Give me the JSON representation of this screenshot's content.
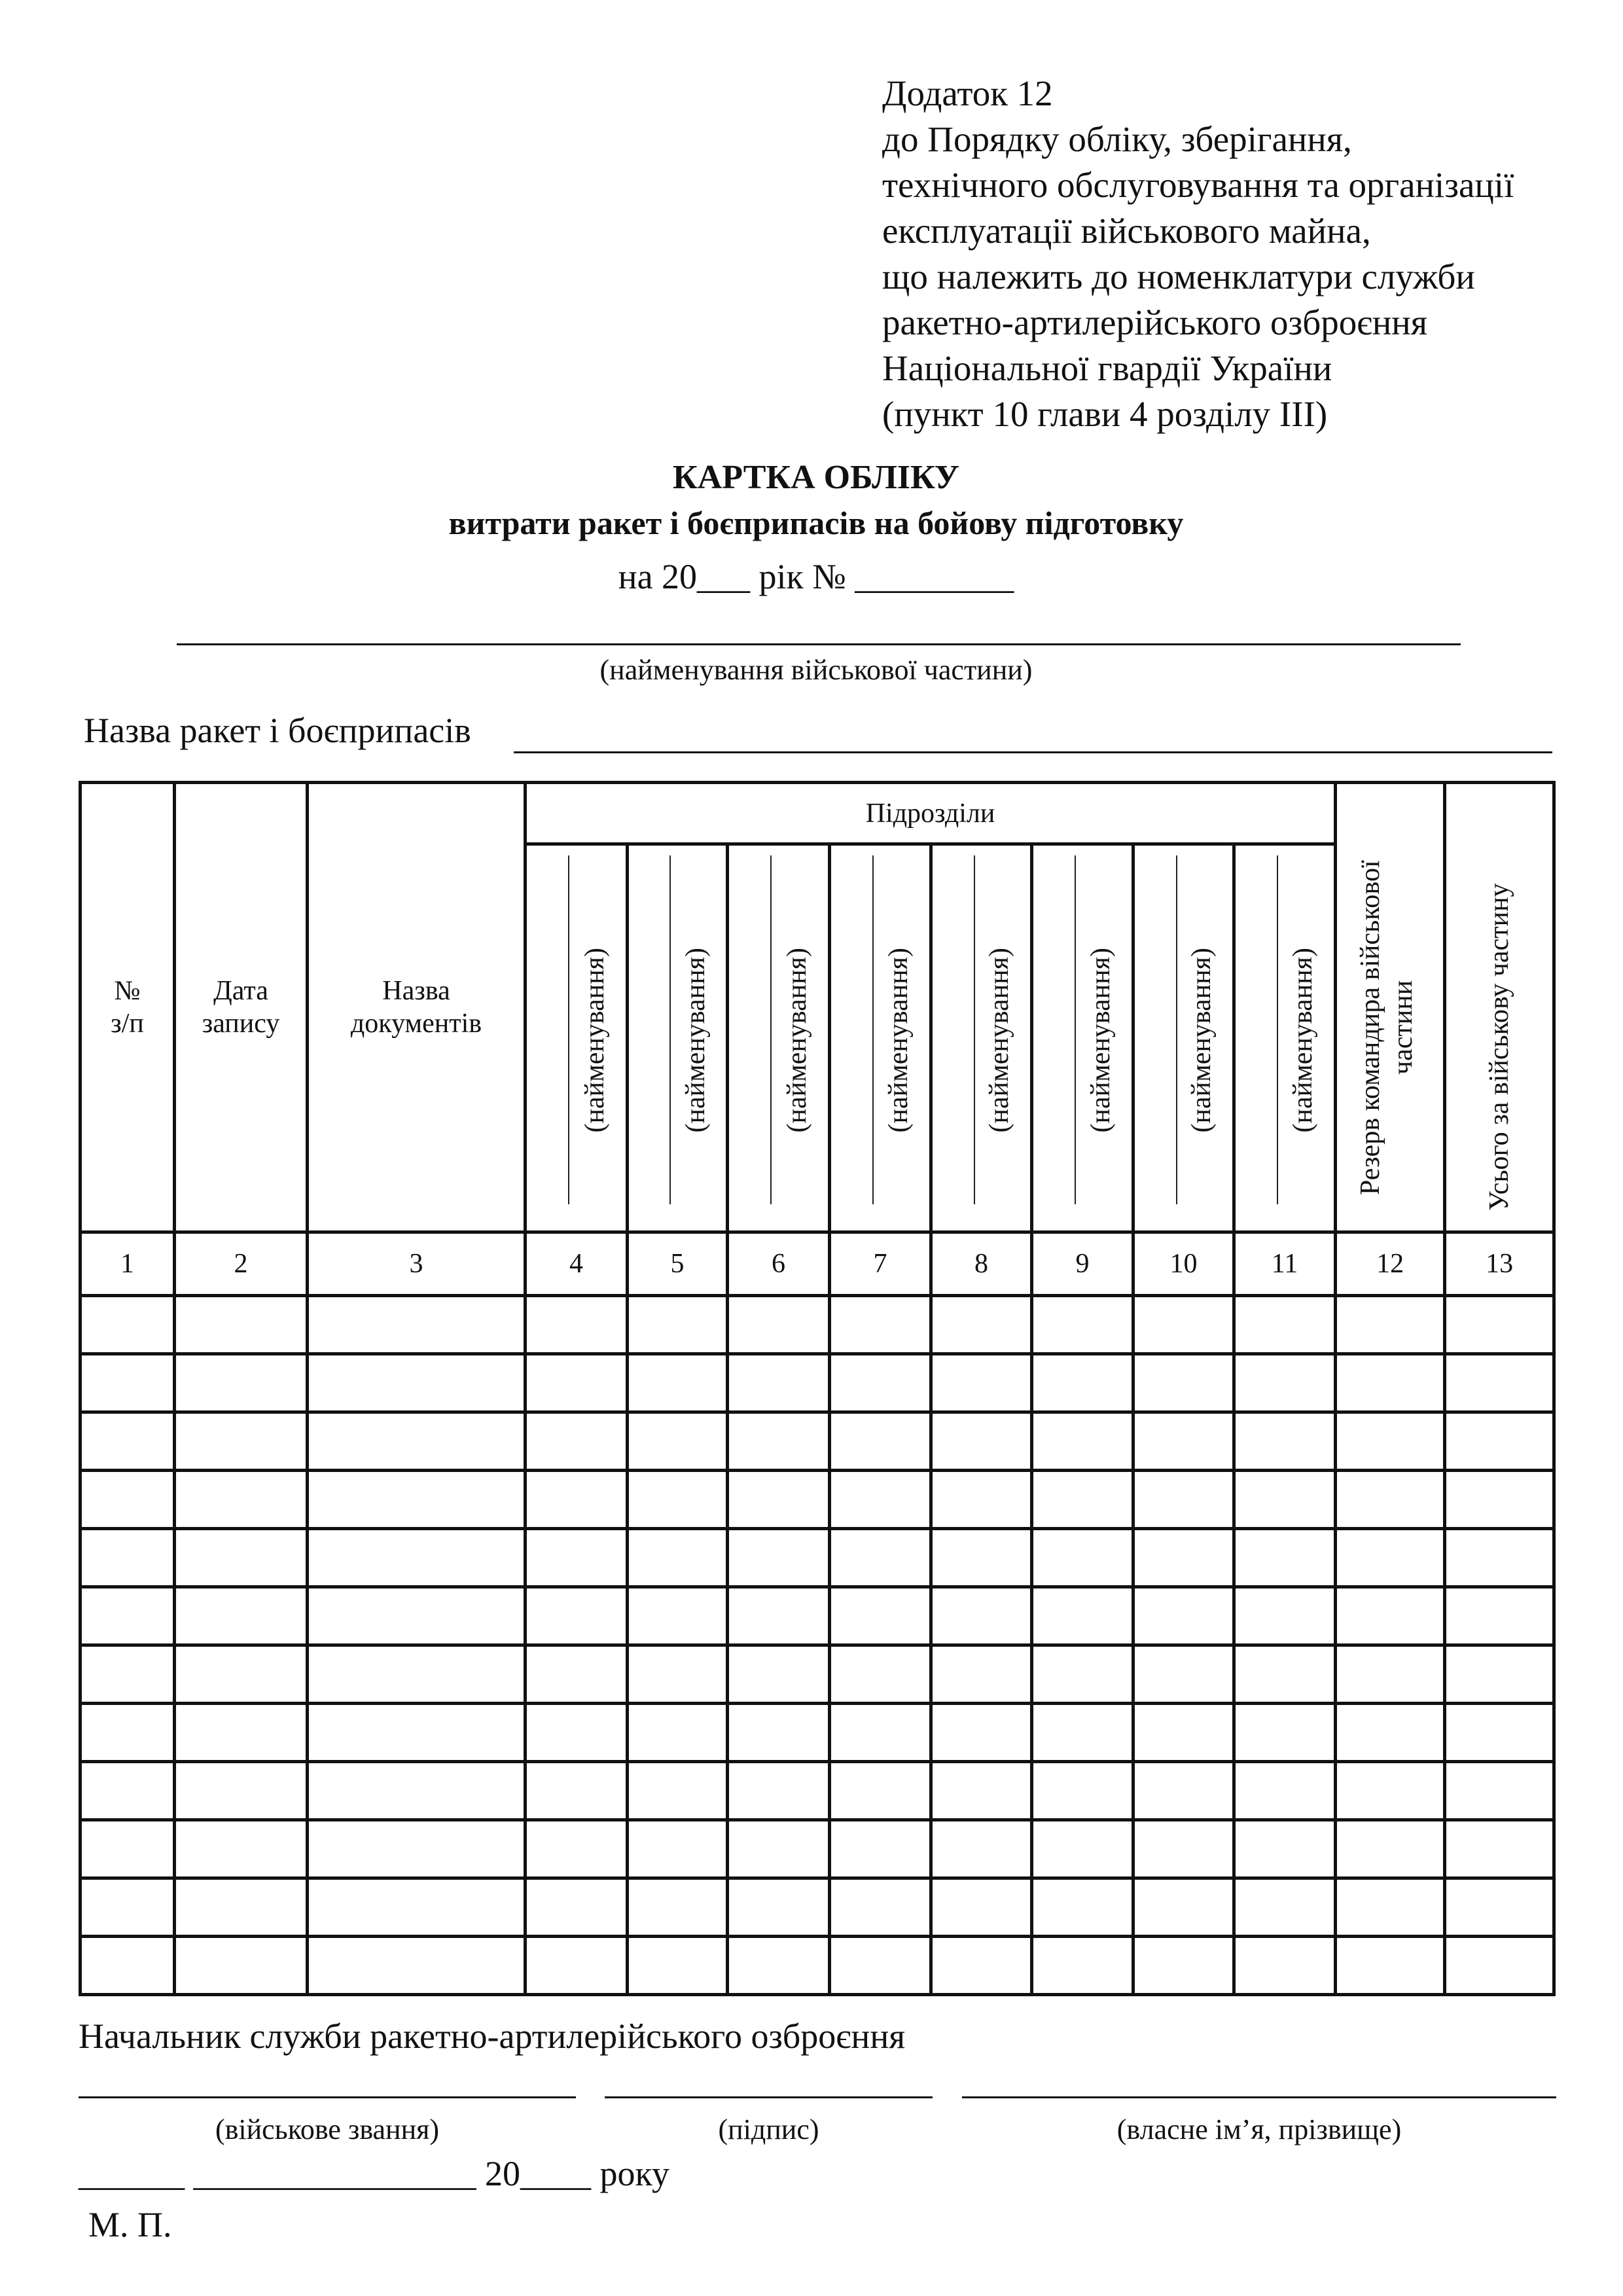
{
  "appendix": {
    "lines": [
      "Додаток 12",
      "до Порядку обліку, зберігання,",
      "технічного обслуговування та організації",
      "експлуатації військового майна,",
      "що належить до номенклатури служби",
      "ракетно-артилерійського озброєння",
      "Національної гвардії України",
      "(пункт 10 глави 4 розділу III)"
    ]
  },
  "title": "КАРТКА ОБЛІКУ",
  "subtitle": "витрати ракет і боєприпасів на бойову підготовку",
  "year_line": "на 20___ рік № _________",
  "unit_caption": "(найменування військової частини)",
  "ammo_label": "Назва ракет і боєприпасів",
  "table": {
    "col1": "№ з/п",
    "col1_a": "№",
    "col1_b": "з/п",
    "col2_a": "Дата",
    "col2_b": "запису",
    "col3_a": "Назва",
    "col3_b": "документів",
    "subunits_header": "Підрозділи",
    "subunit_label": "(найменування)",
    "col12": "Резерв командира військової частини",
    "col13": "Усього за військову частину",
    "numbers": [
      "1",
      "2",
      "3",
      "4",
      "5",
      "6",
      "7",
      "8",
      "9",
      "10",
      "11",
      "12",
      "13"
    ],
    "empty_rows": 12
  },
  "footer": {
    "chief": "Начальник служби ракетно-артилерійського озброєння",
    "rank_caption": "(військове звання)",
    "signature_caption": "(підпис)",
    "name_caption": "(власне ім’я, прізвище)",
    "date_line": "______  ________________ 20____ року",
    "stamp": "М. П."
  }
}
